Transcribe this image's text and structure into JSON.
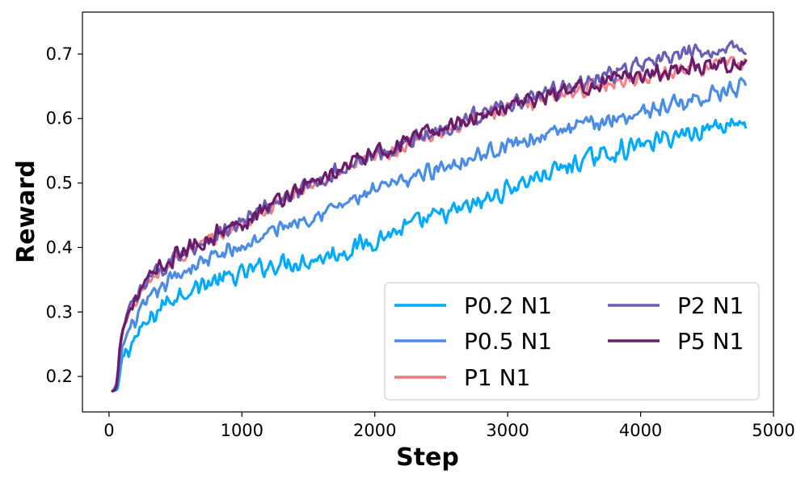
{
  "chart_data": {
    "type": "line",
    "title": "",
    "xlabel": "Step",
    "ylabel": "Reward",
    "xlim": [
      -200,
      5000
    ],
    "ylim": [
      0.145,
      0.765
    ],
    "xticks": [
      0,
      1000,
      2000,
      3000,
      4000,
      5000
    ],
    "yticks": [
      0.2,
      0.3,
      0.4,
      0.5,
      0.6,
      0.7
    ],
    "xtick_labels": [
      "0",
      "1000",
      "2000",
      "3000",
      "4000",
      "5000"
    ],
    "ytick_labels": [
      "0.2",
      "0.3",
      "0.4",
      "0.5",
      "0.6",
      "0.7"
    ],
    "grid": false,
    "legend_position": "lower-right",
    "legend_columns": 2,
    "series": [
      {
        "name": "P0.2 N1",
        "color": "#00aaff",
        "points": [
          [
            40,
            0.178
          ],
          [
            60,
            0.173
          ],
          [
            80,
            0.2
          ],
          [
            100,
            0.23
          ],
          [
            150,
            0.245
          ],
          [
            200,
            0.26
          ],
          [
            300,
            0.285
          ],
          [
            400,
            0.31
          ],
          [
            500,
            0.325
          ],
          [
            600,
            0.335
          ],
          [
            700,
            0.342
          ],
          [
            800,
            0.348
          ],
          [
            900,
            0.352
          ],
          [
            1000,
            0.358
          ],
          [
            1100,
            0.366
          ],
          [
            1200,
            0.372
          ],
          [
            1300,
            0.376
          ],
          [
            1400,
            0.378
          ],
          [
            1500,
            0.38
          ],
          [
            1600,
            0.385
          ],
          [
            1700,
            0.39
          ],
          [
            1800,
            0.396
          ],
          [
            1900,
            0.404
          ],
          [
            2000,
            0.412
          ],
          [
            2100,
            0.42
          ],
          [
            2200,
            0.428
          ],
          [
            2300,
            0.436
          ],
          [
            2400,
            0.443
          ],
          [
            2500,
            0.45
          ],
          [
            2600,
            0.455
          ],
          [
            2700,
            0.462
          ],
          [
            2800,
            0.47
          ],
          [
            2900,
            0.48
          ],
          [
            3000,
            0.49
          ],
          [
            3100,
            0.5
          ],
          [
            3200,
            0.508
          ],
          [
            3300,
            0.515
          ],
          [
            3400,
            0.522
          ],
          [
            3500,
            0.53
          ],
          [
            3600,
            0.537
          ],
          [
            3700,
            0.543
          ],
          [
            3800,
            0.548
          ],
          [
            3900,
            0.553
          ],
          [
            4000,
            0.558
          ],
          [
            4100,
            0.564
          ],
          [
            4200,
            0.57
          ],
          [
            4300,
            0.575
          ],
          [
            4400,
            0.58
          ],
          [
            4500,
            0.585
          ],
          [
            4600,
            0.59
          ],
          [
            4700,
            0.595
          ],
          [
            4800,
            0.592
          ]
        ]
      },
      {
        "name": "P0.5 N1",
        "color": "#4b8ce6",
        "points": [
          [
            40,
            0.178
          ],
          [
            60,
            0.18
          ],
          [
            80,
            0.21
          ],
          [
            100,
            0.245
          ],
          [
            150,
            0.27
          ],
          [
            200,
            0.29
          ],
          [
            300,
            0.315
          ],
          [
            400,
            0.34
          ],
          [
            500,
            0.355
          ],
          [
            600,
            0.368
          ],
          [
            700,
            0.378
          ],
          [
            800,
            0.386
          ],
          [
            900,
            0.393
          ],
          [
            1000,
            0.4
          ],
          [
            1100,
            0.412
          ],
          [
            1200,
            0.422
          ],
          [
            1300,
            0.432
          ],
          [
            1400,
            0.44
          ],
          [
            1500,
            0.448
          ],
          [
            1600,
            0.456
          ],
          [
            1700,
            0.462
          ],
          [
            1800,
            0.47
          ],
          [
            1900,
            0.478
          ],
          [
            2000,
            0.486
          ],
          [
            2100,
            0.494
          ],
          [
            2200,
            0.502
          ],
          [
            2300,
            0.51
          ],
          [
            2400,
            0.518
          ],
          [
            2500,
            0.525
          ],
          [
            2600,
            0.532
          ],
          [
            2700,
            0.538
          ],
          [
            2800,
            0.545
          ],
          [
            2900,
            0.552
          ],
          [
            3000,
            0.558
          ],
          [
            3100,
            0.565
          ],
          [
            3200,
            0.57
          ],
          [
            3300,
            0.575
          ],
          [
            3400,
            0.58
          ],
          [
            3500,
            0.585
          ],
          [
            3600,
            0.59
          ],
          [
            3700,
            0.595
          ],
          [
            3800,
            0.6
          ],
          [
            3900,
            0.605
          ],
          [
            4000,
            0.61
          ],
          [
            4100,
            0.615
          ],
          [
            4200,
            0.62
          ],
          [
            4300,
            0.625
          ],
          [
            4400,
            0.63
          ],
          [
            4500,
            0.635
          ],
          [
            4600,
            0.64
          ],
          [
            4700,
            0.645
          ],
          [
            4800,
            0.648
          ]
        ]
      },
      {
        "name": "P1 N1",
        "color": "#f07878",
        "points": [
          [
            20,
            0.175
          ],
          [
            40,
            0.18
          ],
          [
            60,
            0.19
          ],
          [
            80,
            0.24
          ],
          [
            100,
            0.27
          ],
          [
            150,
            0.3
          ],
          [
            200,
            0.315
          ],
          [
            300,
            0.345
          ],
          [
            400,
            0.365
          ],
          [
            500,
            0.382
          ],
          [
            600,
            0.395
          ],
          [
            700,
            0.405
          ],
          [
            800,
            0.415
          ],
          [
            900,
            0.425
          ],
          [
            1000,
            0.435
          ],
          [
            1100,
            0.448
          ],
          [
            1200,
            0.46
          ],
          [
            1300,
            0.472
          ],
          [
            1400,
            0.483
          ],
          [
            1500,
            0.493
          ],
          [
            1600,
            0.503
          ],
          [
            1700,
            0.512
          ],
          [
            1800,
            0.522
          ],
          [
            1900,
            0.532
          ],
          [
            2000,
            0.54
          ],
          [
            2100,
            0.548
          ],
          [
            2200,
            0.556
          ],
          [
            2300,
            0.564
          ],
          [
            2400,
            0.572
          ],
          [
            2500,
            0.58
          ],
          [
            2600,
            0.588
          ],
          [
            2700,
            0.596
          ],
          [
            2800,
            0.604
          ],
          [
            2900,
            0.61
          ],
          [
            3000,
            0.617
          ],
          [
            3100,
            0.622
          ],
          [
            3200,
            0.628
          ],
          [
            3300,
            0.633
          ],
          [
            3400,
            0.638
          ],
          [
            3500,
            0.643
          ],
          [
            3600,
            0.648
          ],
          [
            3700,
            0.652
          ],
          [
            3800,
            0.656
          ],
          [
            3900,
            0.66
          ],
          [
            4000,
            0.664
          ],
          [
            4100,
            0.668
          ],
          [
            4200,
            0.672
          ],
          [
            4300,
            0.675
          ],
          [
            4400,
            0.678
          ],
          [
            4500,
            0.681
          ],
          [
            4600,
            0.684
          ],
          [
            4700,
            0.686
          ],
          [
            4800,
            0.688
          ]
        ]
      },
      {
        "name": "P2 N1",
        "color": "#6b5fb5",
        "points": [
          [
            20,
            0.175
          ],
          [
            40,
            0.18
          ],
          [
            60,
            0.19
          ],
          [
            80,
            0.24
          ],
          [
            100,
            0.27
          ],
          [
            150,
            0.302
          ],
          [
            200,
            0.318
          ],
          [
            300,
            0.348
          ],
          [
            400,
            0.368
          ],
          [
            500,
            0.385
          ],
          [
            600,
            0.398
          ],
          [
            700,
            0.408
          ],
          [
            800,
            0.418
          ],
          [
            900,
            0.428
          ],
          [
            1000,
            0.438
          ],
          [
            1100,
            0.45
          ],
          [
            1200,
            0.462
          ],
          [
            1300,
            0.474
          ],
          [
            1400,
            0.485
          ],
          [
            1500,
            0.495
          ],
          [
            1600,
            0.505
          ],
          [
            1700,
            0.515
          ],
          [
            1800,
            0.525
          ],
          [
            1900,
            0.535
          ],
          [
            2000,
            0.543
          ],
          [
            2100,
            0.551
          ],
          [
            2200,
            0.559
          ],
          [
            2300,
            0.567
          ],
          [
            2400,
            0.575
          ],
          [
            2500,
            0.584
          ],
          [
            2600,
            0.592
          ],
          [
            2700,
            0.6
          ],
          [
            2800,
            0.608
          ],
          [
            2900,
            0.615
          ],
          [
            3000,
            0.622
          ],
          [
            3100,
            0.628
          ],
          [
            3200,
            0.634
          ],
          [
            3300,
            0.64
          ],
          [
            3400,
            0.646
          ],
          [
            3500,
            0.652
          ],
          [
            3600,
            0.658
          ],
          [
            3700,
            0.664
          ],
          [
            3800,
            0.67
          ],
          [
            3900,
            0.676
          ],
          [
            4000,
            0.682
          ],
          [
            4100,
            0.688
          ],
          [
            4200,
            0.692
          ],
          [
            4300,
            0.697
          ],
          [
            4400,
            0.701
          ],
          [
            4500,
            0.705
          ],
          [
            4600,
            0.708
          ],
          [
            4700,
            0.711
          ],
          [
            4800,
            0.712
          ]
        ]
      },
      {
        "name": "P5 N1",
        "color": "#6a1b6a",
        "points": [
          [
            20,
            0.175
          ],
          [
            40,
            0.18
          ],
          [
            60,
            0.19
          ],
          [
            80,
            0.24
          ],
          [
            100,
            0.27
          ],
          [
            150,
            0.305
          ],
          [
            200,
            0.32
          ],
          [
            300,
            0.35
          ],
          [
            400,
            0.37
          ],
          [
            500,
            0.386
          ],
          [
            600,
            0.399
          ],
          [
            700,
            0.41
          ],
          [
            800,
            0.42
          ],
          [
            900,
            0.43
          ],
          [
            1000,
            0.44
          ],
          [
            1100,
            0.452
          ],
          [
            1200,
            0.464
          ],
          [
            1300,
            0.476
          ],
          [
            1400,
            0.487
          ],
          [
            1500,
            0.497
          ],
          [
            1600,
            0.507
          ],
          [
            1700,
            0.517
          ],
          [
            1800,
            0.527
          ],
          [
            1900,
            0.537
          ],
          [
            2000,
            0.545
          ],
          [
            2100,
            0.553
          ],
          [
            2200,
            0.561
          ],
          [
            2300,
            0.569
          ],
          [
            2400,
            0.577
          ],
          [
            2500,
            0.585
          ],
          [
            2600,
            0.592
          ],
          [
            2700,
            0.6
          ],
          [
            2800,
            0.607
          ],
          [
            2900,
            0.613
          ],
          [
            3000,
            0.619
          ],
          [
            3100,
            0.624
          ],
          [
            3200,
            0.63
          ],
          [
            3300,
            0.635
          ],
          [
            3400,
            0.64
          ],
          [
            3500,
            0.645
          ],
          [
            3600,
            0.65
          ],
          [
            3700,
            0.655
          ],
          [
            3800,
            0.659
          ],
          [
            3900,
            0.663
          ],
          [
            4000,
            0.667
          ],
          [
            4100,
            0.671
          ],
          [
            4200,
            0.675
          ],
          [
            4300,
            0.678
          ],
          [
            4400,
            0.681
          ],
          [
            4500,
            0.684
          ],
          [
            4600,
            0.686
          ],
          [
            4700,
            0.684
          ],
          [
            4800,
            0.682
          ]
        ]
      }
    ]
  }
}
